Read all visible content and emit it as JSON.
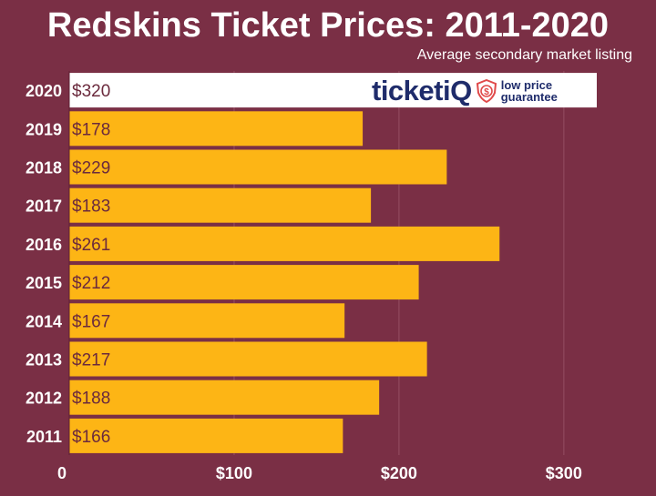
{
  "header": {
    "title": "Redskins Ticket Prices: 2011-2020",
    "subtitle": "Average secondary market listing"
  },
  "logo": {
    "wordmark": "ticketiQ",
    "tagline_line1": "low price",
    "tagline_line2": "guarantee"
  },
  "colors": {
    "background": "#7a2f45",
    "bar": "#fdb515",
    "highlight_bar": "#ffffff",
    "logo": "#1f2c6b"
  },
  "chart_data": {
    "type": "bar",
    "orientation": "horizontal",
    "categories": [
      "2020",
      "2019",
      "2018",
      "2017",
      "2016",
      "2015",
      "2014",
      "2013",
      "2012",
      "2011"
    ],
    "values": [
      320,
      178,
      229,
      183,
      261,
      212,
      167,
      217,
      188,
      166
    ],
    "value_labels": [
      "$320",
      "$178",
      "$229",
      "$183",
      "$261",
      "$212",
      "$167",
      "$217",
      "$188",
      "$166"
    ],
    "highlight_category": "2020",
    "xlim": [
      0,
      320
    ],
    "x_ticks": [
      0,
      100,
      200,
      300
    ],
    "x_tick_labels": [
      "0",
      "$100",
      "$200",
      "$300"
    ],
    "grid": true
  }
}
